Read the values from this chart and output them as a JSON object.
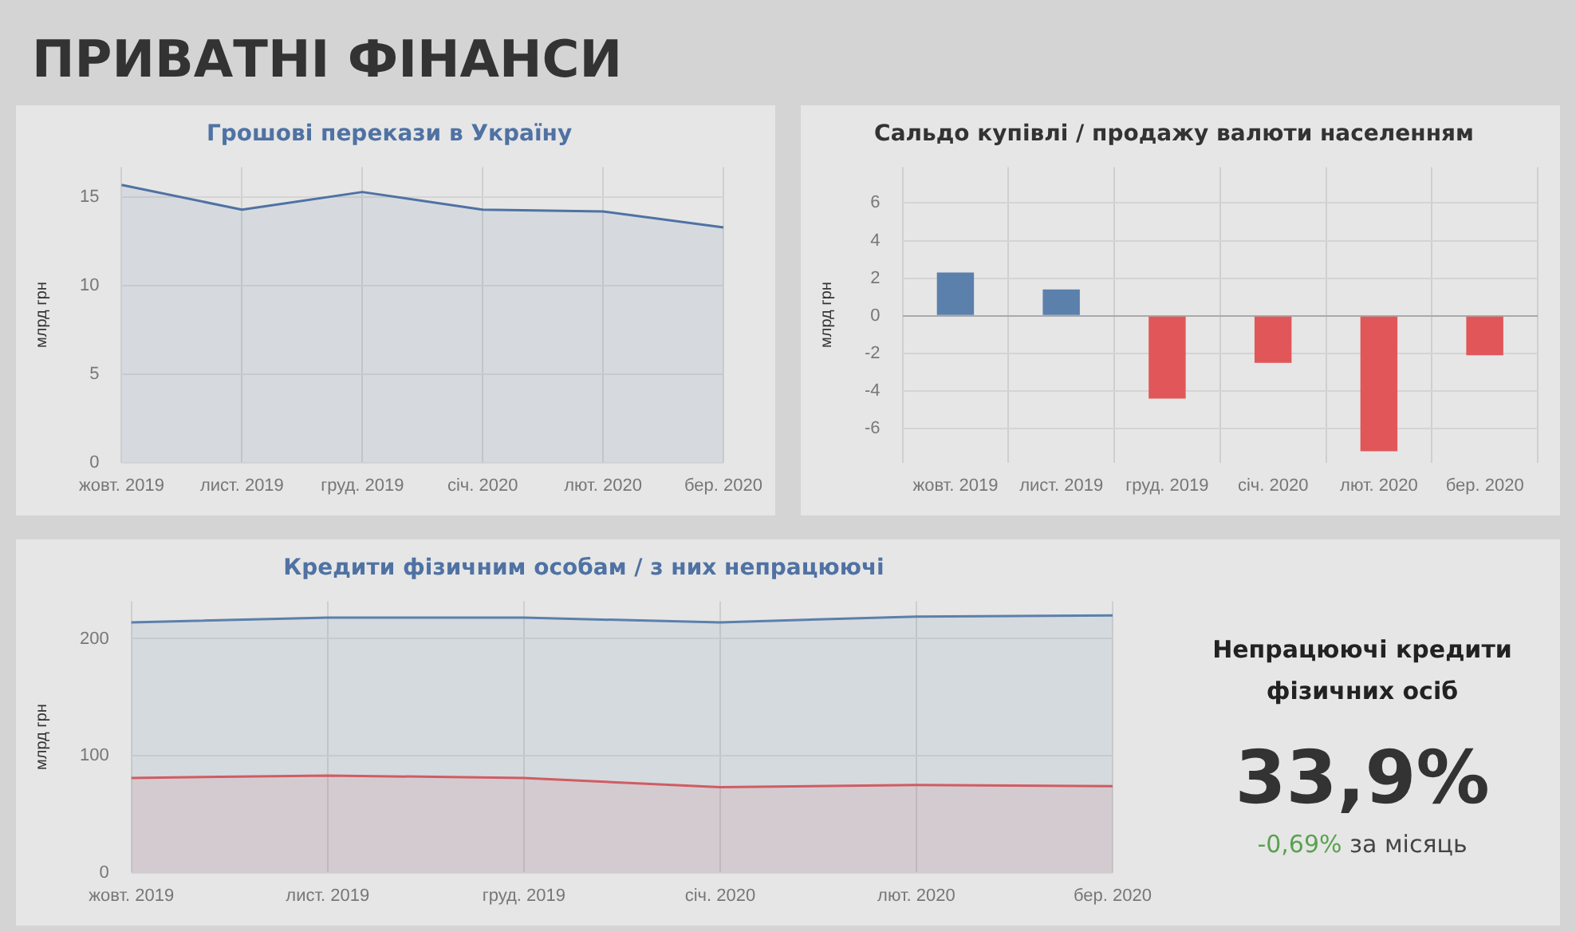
{
  "chart_data": [
    {
      "type": "area",
      "title": "Грошові перекази в Україну",
      "ylabel": "млрд грн",
      "annotations": [
        "ПРИВАТНІ ФІНАНСИ"
      ],
      "categories": [
        "жовт. 2019",
        "лист. 2019",
        "груд. 2019",
        "січ. 2020",
        "лют. 2020",
        "бер. 2020"
      ],
      "values": [
        15.7,
        14.3,
        15.3,
        14.3,
        14.2,
        13.3
      ],
      "color": "#4f72a3",
      "ylim": [
        0,
        16.7
      ],
      "yticks": [
        0,
        5,
        10,
        15
      ],
      "grid": true
    },
    {
      "type": "bar",
      "title": "Сальдо купівлі / продажу валюти населенням",
      "ylabel": "млрд грн",
      "categories": [
        "жовт. 2019",
        "лист. 2019",
        "груд. 2019",
        "січ. 2020",
        "лют. 2020",
        "бер. 2020"
      ],
      "values": [
        2.3,
        1.4,
        -4.4,
        -2.5,
        -7.2,
        -2.1
      ],
      "colors": [
        "#5b80ab",
        "#5b80ab",
        "#e15759",
        "#e15759",
        "#e15759",
        "#e15759"
      ],
      "ylim": [
        -7.8,
        7.9
      ],
      "yticks": [
        -6,
        -4,
        -2,
        0,
        2,
        4,
        6
      ],
      "grid": true
    },
    {
      "type": "area",
      "title": "Кредити фізичним особам / з них непрацюючі",
      "ylabel": "млрд грн",
      "categories": [
        "жовт. 2019",
        "лист. 2019",
        "груд. 2019",
        "січ. 2020",
        "лют. 2020",
        "бер. 2020"
      ],
      "series": [
        {
          "color": "#5b80ab",
          "values": [
            214,
            218,
            218,
            214,
            219,
            220
          ]
        },
        {
          "color": "#e15759",
          "values": [
            81,
            83,
            81,
            73,
            75,
            74
          ]
        }
      ],
      "ylim": [
        0,
        232
      ],
      "yticks": [
        0,
        100,
        200
      ],
      "grid": true
    },
    {
      "type": "other",
      "title": "Непрацюючі кредити фізичних осіб",
      "annotations": [
        "33,9%",
        "-0,69%",
        "за місяць"
      ]
    }
  ]
}
